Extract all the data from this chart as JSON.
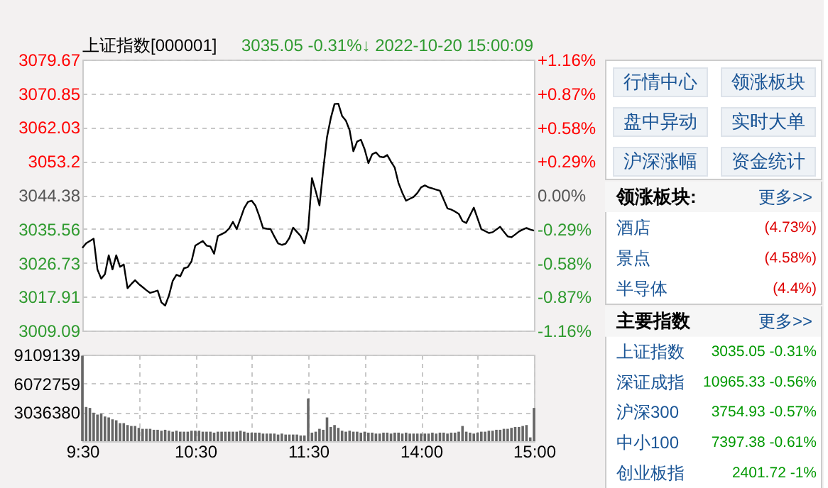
{
  "chart_data": [
    {
      "type": "line",
      "title": "上证指数[000001]",
      "subtitle": "3035.05  -0.31%↓  2022-10-20 15:00:09",
      "categories": [
        "9:30",
        null,
        null,
        null,
        null,
        null,
        null,
        null,
        null,
        null,
        null,
        null,
        null,
        null,
        null,
        null,
        null,
        null,
        null,
        null,
        null,
        null,
        null,
        null,
        null,
        null,
        null,
        null,
        null,
        null,
        "10:30",
        null,
        null,
        null,
        null,
        null,
        null,
        null,
        null,
        null,
        null,
        null,
        null,
        null,
        null,
        null,
        null,
        null,
        null,
        null,
        null,
        null,
        null,
        null,
        null,
        null,
        null,
        null,
        null,
        null,
        "11:30",
        null,
        null,
        null,
        null,
        null,
        null,
        null,
        null,
        null,
        null,
        null,
        null,
        null,
        null,
        null,
        null,
        null,
        null,
        null,
        null,
        null,
        null,
        null,
        null,
        null,
        null,
        null,
        null,
        null,
        "14:00",
        null,
        null,
        null,
        null,
        null,
        null,
        null,
        null,
        null,
        null,
        null,
        null,
        null,
        null,
        null,
        null,
        null,
        null,
        null,
        null,
        null,
        null,
        null,
        null,
        null,
        null,
        null,
        null,
        null,
        "15:00"
      ],
      "series": [
        {
          "color": "#000000",
          "values": [
            3030.6,
            3031.8,
            3032.4,
            3033.0,
            3025.0,
            3022.6,
            3023.8,
            3028.7,
            3025.0,
            3028.7,
            3025.7,
            3026.3,
            3020.1,
            3021.2,
            3022.2,
            3021.2,
            3020.4,
            3019.6,
            3018.9,
            3019.2,
            3019.5,
            3016.4,
            3015.6,
            3018.2,
            3022.0,
            3023.6,
            3023.2,
            3025.3,
            3025.6,
            3027.1,
            3031.2,
            3031.8,
            3032.4,
            3031.2,
            3031.0,
            3029.1,
            3033.7,
            3034.2,
            3034.7,
            3035.7,
            3037.4,
            3035.5,
            3038.2,
            3041.0,
            3042.6,
            3042.9,
            3041.6,
            3038.9,
            3035.8,
            3035.6,
            3035.5,
            3033.6,
            3031.8,
            3031.4,
            3031.7,
            3033.2,
            3035.9,
            3034.8,
            3033.7,
            3031.8,
            3035.5,
            3048.8,
            3045.4,
            3041.7,
            3051.0,
            3059.5,
            3064.4,
            3068.1,
            3068.2,
            3065.0,
            3063.8,
            3061.3,
            3055.8,
            3058.3,
            3058.8,
            3056.3,
            3052.7,
            3055.0,
            3055.5,
            3054.4,
            3054.2,
            3054.8,
            3053.1,
            3051.5,
            3047.5,
            3045.0,
            3042.9,
            3043.4,
            3043.9,
            3044.9,
            3046.4,
            3046.9,
            3046.4,
            3046.1,
            3045.8,
            3045.5,
            3043.2,
            3040.9,
            3040.6,
            3040.1,
            3039.5,
            3037.6,
            3037.1,
            3039.1,
            3041.1,
            3038.3,
            3035.5,
            3035.0,
            3034.5,
            3034.7,
            3035.4,
            3036.1,
            3034.8,
            3033.6,
            3033.4,
            3034.1,
            3034.9,
            3035.4,
            3035.8,
            3035.4,
            3035.1
          ]
        }
      ],
      "ylim": [
        3009.09,
        3079.67
      ],
      "yticks": [
        3009.09,
        3017.91,
        3026.73,
        3035.56,
        3044.38,
        3053.2,
        3062.03,
        3070.85,
        3079.67
      ],
      "y2lim": [
        -1.16,
        1.16
      ],
      "y2ticks": [
        {
          "value": -1.16,
          "label": "-1.16%"
        },
        {
          "value": -0.87,
          "label": "-0.87%"
        },
        {
          "value": -0.58,
          "label": "-0.58%"
        },
        {
          "value": -0.29,
          "label": "-0.29%"
        },
        {
          "value": 0,
          "label": "0.00%"
        },
        {
          "value": 0.29,
          "label": "+0.29%"
        },
        {
          "value": 0.58,
          "label": "+0.58%"
        },
        {
          "value": 0.87,
          "label": "+0.87%"
        },
        {
          "value": 1.16,
          "label": "+1.16%"
        }
      ],
      "tick_labels": "y",
      "grid": true,
      "line_style": "solid"
    },
    {
      "type": "bar",
      "color": "#666666",
      "categories": [
        "9:30",
        null,
        null,
        null,
        null,
        null,
        null,
        null,
        null,
        null,
        null,
        null,
        null,
        null,
        null,
        null,
        null,
        null,
        null,
        null,
        null,
        null,
        null,
        null,
        null,
        null,
        null,
        null,
        null,
        null,
        "10:30",
        null,
        null,
        null,
        null,
        null,
        null,
        null,
        null,
        null,
        null,
        null,
        null,
        null,
        null,
        null,
        null,
        null,
        null,
        null,
        null,
        null,
        null,
        null,
        null,
        null,
        null,
        null,
        null,
        null,
        "11:30",
        null,
        null,
        null,
        null,
        null,
        null,
        null,
        null,
        null,
        null,
        null,
        null,
        null,
        null,
        null,
        null,
        null,
        null,
        null,
        null,
        null,
        null,
        null,
        null,
        null,
        null,
        null,
        null,
        null,
        "14:00",
        null,
        null,
        null,
        null,
        null,
        null,
        null,
        null,
        null,
        null,
        null,
        null,
        null,
        null,
        null,
        null,
        null,
        null,
        null,
        null,
        null,
        null,
        null,
        null,
        null,
        null,
        null,
        null,
        null,
        "15:00"
      ],
      "values": [
        9000000,
        3600000,
        3500000,
        3000000,
        2800000,
        2900000,
        2600000,
        2500000,
        2300000,
        2200000,
        1900000,
        1900000,
        1700000,
        1600000,
        1600000,
        1400000,
        1300000,
        1300000,
        1300000,
        1200000,
        1200000,
        1100000,
        1200000,
        1100000,
        1000000,
        1100000,
        1000000,
        1000000,
        1000000,
        1100000,
        1100000,
        1100000,
        1000000,
        1000000,
        1000000,
        900000,
        1000000,
        1000000,
        1000000,
        1000000,
        1000000,
        1000000,
        1100000,
        1000000,
        900000,
        900000,
        900000,
        900000,
        800000,
        800000,
        800000,
        800000,
        700000,
        800000,
        700000,
        700000,
        700000,
        700000,
        600000,
        600000,
        4500000,
        900000,
        1000000,
        1300000,
        1200000,
        2500000,
        1500000,
        1700000,
        1400000,
        1100000,
        1000000,
        1100000,
        1000000,
        1000000,
        900000,
        1000000,
        900000,
        900000,
        800000,
        800000,
        900000,
        900000,
        800000,
        900000,
        900000,
        800000,
        900000,
        800000,
        800000,
        800000,
        800000,
        800000,
        800000,
        900000,
        800000,
        900000,
        900000,
        800000,
        900000,
        900000,
        1000000,
        1600000,
        1000000,
        900000,
        800000,
        900000,
        1000000,
        1000000,
        1100000,
        1100000,
        1200000,
        1200000,
        1300000,
        1300000,
        1400000,
        1500000,
        1500000,
        1600000,
        1700000,
        400000,
        3500000
      ],
      "ylim": [
        0,
        9109139
      ],
      "yticks": [
        3036380,
        6072759,
        9109139
      ],
      "grid": true
    },
    {
      "type": "other",
      "annotations": [
        "行情中心",
        "领涨板块",
        "盘中异动",
        "实时大单",
        "沪深涨幅",
        "资金统计"
      ]
    },
    {
      "type": "other",
      "title": "领涨板块:",
      "subtitle": "更多>>",
      "categories": [
        "酒店",
        "景点",
        "半导体"
      ],
      "value_labels": [
        "(4.73%)",
        "(4.58%)",
        "(4.4%)"
      ],
      "color": "#dd0000"
    },
    {
      "type": "other",
      "title": "主要指数",
      "subtitle": "更多>>",
      "categories": [
        "上证指数",
        "深证成指",
        "沪深300",
        "中小100",
        "创业板指"
      ],
      "value_labels": [
        "3035.05 -0.31%",
        "10965.33 -0.56%",
        "3754.93 -0.57%",
        "7397.38 -0.61%",
        "2401.72 -1%"
      ],
      "color": "#009900"
    }
  ]
}
